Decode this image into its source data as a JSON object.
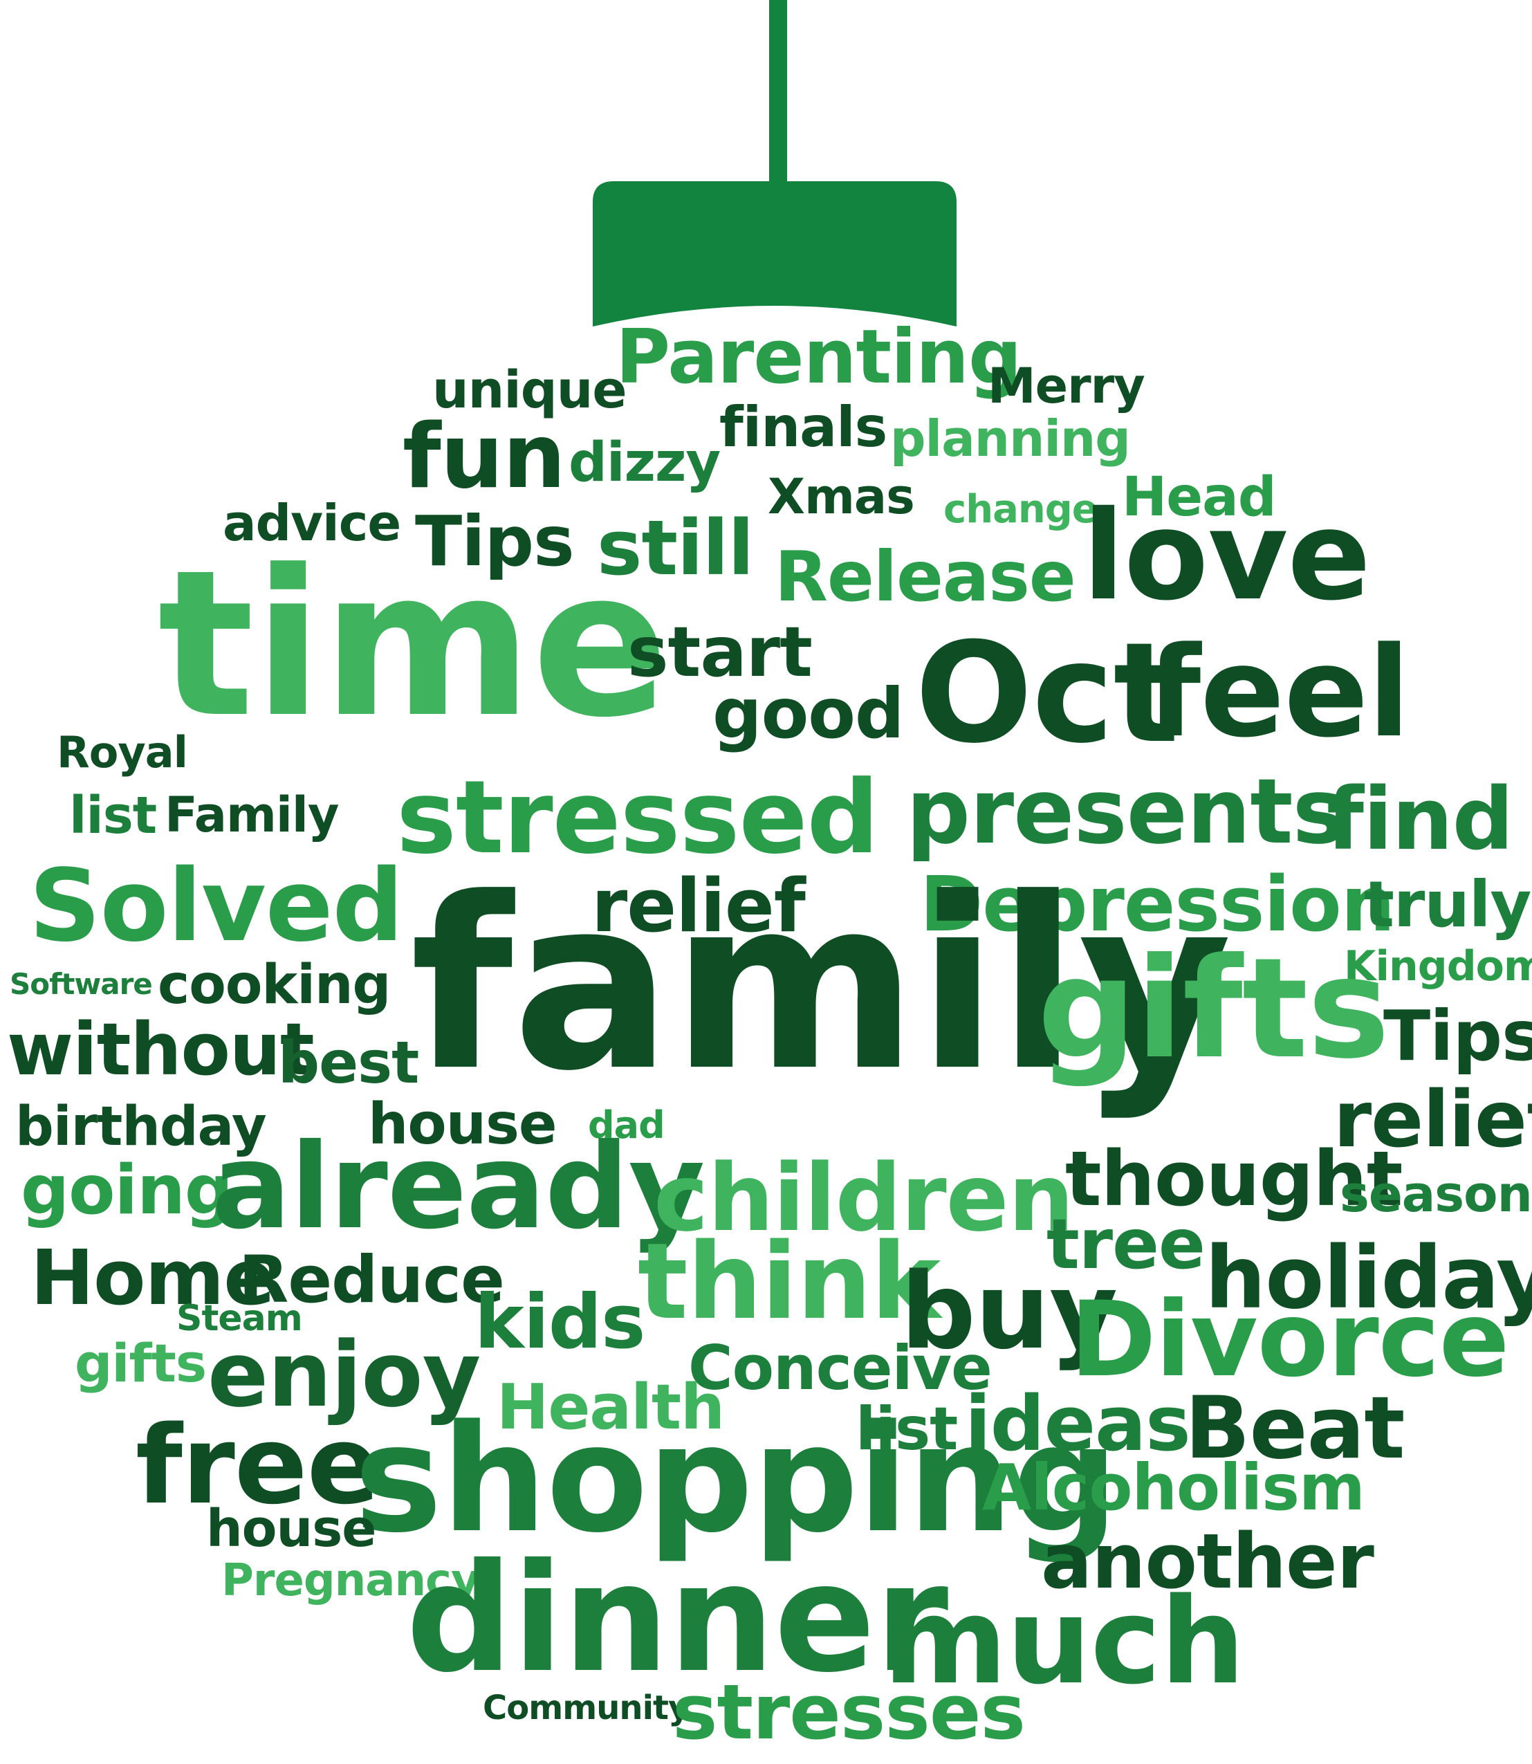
{
  "colors": {
    "ornament_green": "#128440",
    "dark": "#0f4d24",
    "medium_dark": "#16622f",
    "medium": "#1c7f3c",
    "light": "#2a9d4b",
    "lighter": "#3fb35d"
  },
  "words": [
    "unique",
    "Parenting",
    "Merry",
    "finals",
    "planning",
    "fun",
    "dizzy",
    "Xmas",
    "change",
    "Head",
    "advice",
    "Tips",
    "still",
    "Release",
    "love",
    "time",
    "start",
    "good",
    "Oct",
    "feel",
    "Royal",
    "list",
    "Family",
    "stressed",
    "presents",
    "find",
    "Solved",
    "relief",
    "Depression",
    "truly",
    "Kingdom",
    "Software",
    "cooking",
    "family",
    "gifts",
    "without",
    "best",
    "Tips",
    "birthday",
    "house",
    "dad",
    "relief",
    "going",
    "already",
    "children",
    "thought",
    "season",
    "tree",
    "Home",
    "Reduce",
    "think",
    "holiday",
    "Steam",
    "kids",
    "buy",
    "Divorce",
    "gifts",
    "enjoy",
    "Conceive",
    "Health",
    "list",
    "ideas",
    "Beat",
    "free",
    "shopping",
    "Alcoholism",
    "house",
    "another",
    "Pregnancy",
    "dinner",
    "much",
    "Community",
    "stresses"
  ]
}
